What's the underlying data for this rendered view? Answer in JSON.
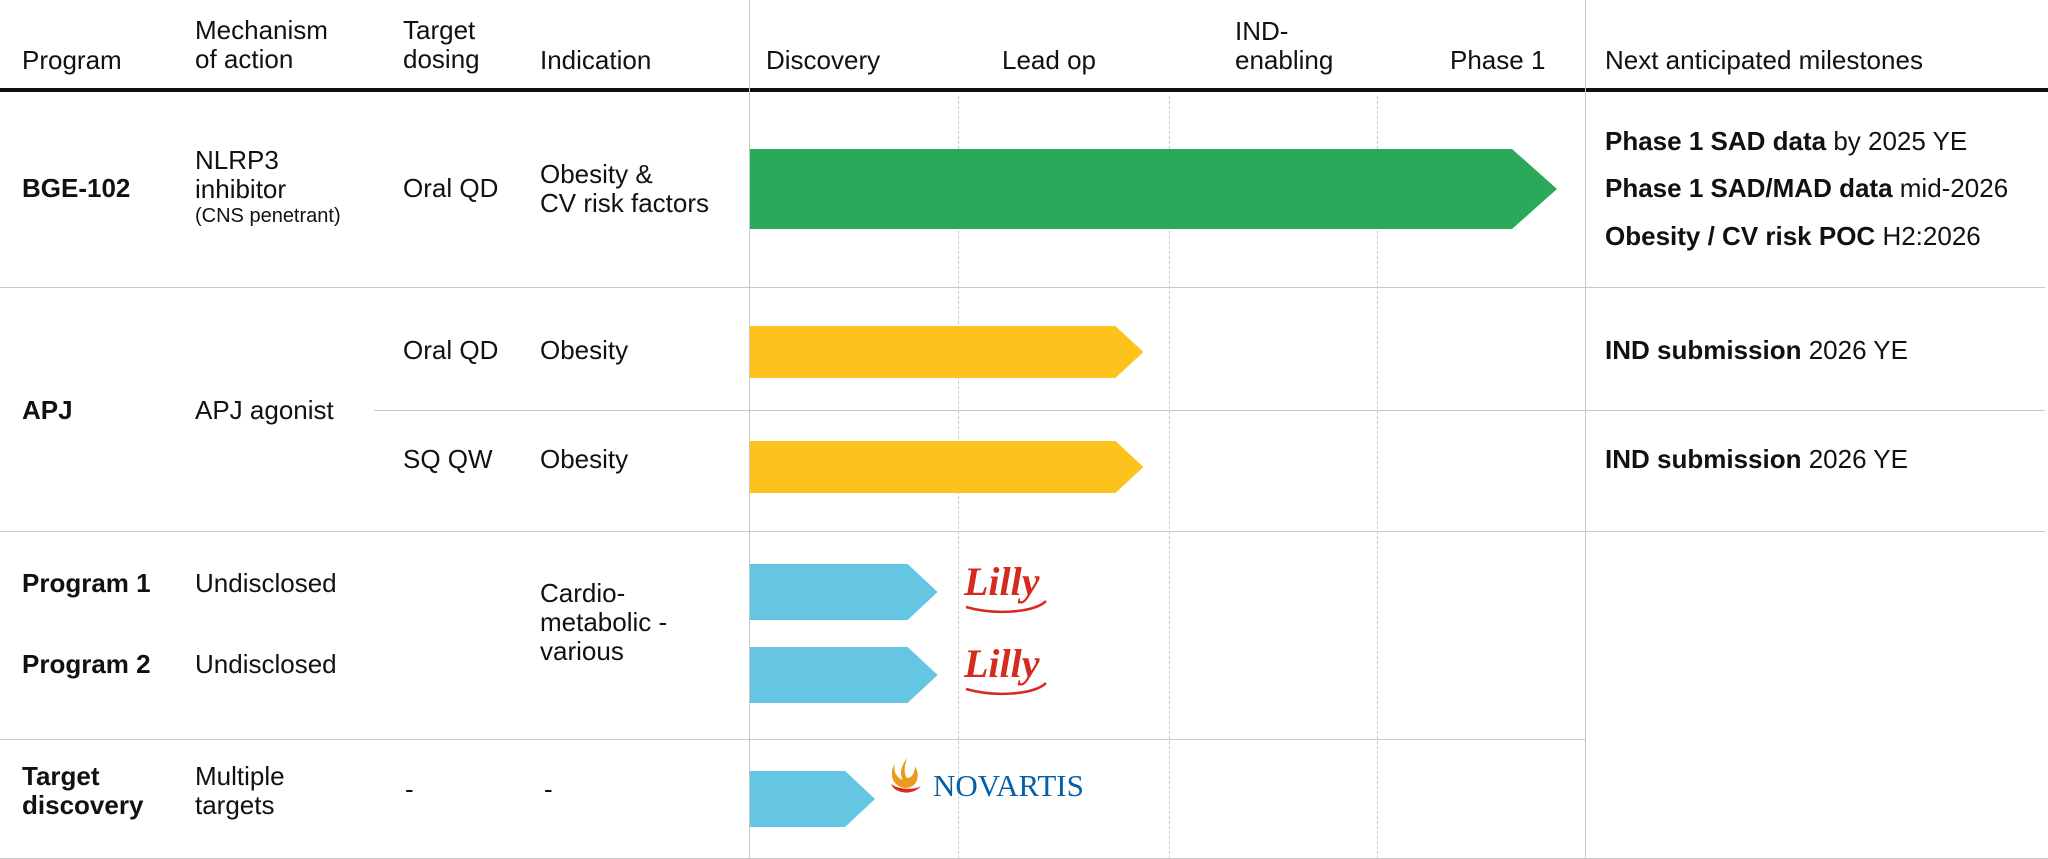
{
  "headers": {
    "program": "Program",
    "mechanism": [
      "Mechanism",
      "of action"
    ],
    "dosing": [
      "Target",
      "dosing"
    ],
    "indication": "Indication",
    "discovery": "Discovery",
    "lead_op": "Lead op",
    "ind_enabling": [
      "IND-",
      "enabling"
    ],
    "phase1": "Phase 1",
    "milestones": "Next anticipated milestones"
  },
  "rows": {
    "bge": {
      "program": "BGE-102",
      "mechanism": [
        "NLRP3",
        "inhibitor"
      ],
      "mechanism_note": "(CNS penetrant)",
      "dosing": "Oral QD",
      "indication": [
        "Obesity &",
        "CV risk factors"
      ],
      "milestones": [
        {
          "bold": "Phase 1 SAD data",
          "rest": " by 2025 YE"
        },
        {
          "bold": "Phase 1 SAD/MAD data",
          "rest": " mid-2026"
        },
        {
          "bold": "Obesity / CV risk POC",
          "rest": " H2:2026"
        }
      ]
    },
    "apj": {
      "program": "APJ",
      "mechanism": "APJ agonist",
      "sub": [
        {
          "dosing": "Oral QD",
          "indication": "Obesity",
          "milestone_bold": "IND submission",
          "milestone_rest": " 2026 YE"
        },
        {
          "dosing": "SQ QW",
          "indication": "Obesity",
          "milestone_bold": "IND submission",
          "milestone_rest": " 2026 YE"
        }
      ]
    },
    "programs": {
      "p1": {
        "program": "Program 1",
        "mechanism": "Undisclosed"
      },
      "p2": {
        "program": "Program 2",
        "mechanism": "Undisclosed"
      },
      "indication": [
        "Cardio-",
        "metabolic -",
        "various"
      ],
      "partner": "Lilly"
    },
    "target": {
      "program": [
        "Target",
        "discovery"
      ],
      "mechanism": [
        "Multiple",
        "targets"
      ],
      "dosing": "-",
      "indication": "-",
      "partner": "NOVARTIS"
    }
  },
  "chart_data": {
    "type": "bar",
    "title": "",
    "stages": [
      "Discovery",
      "Lead op",
      "IND-enabling",
      "Phase 1"
    ],
    "xlim": [
      0,
      4
    ],
    "series": [
      {
        "name": "BGE-102 Oral QD",
        "start": 0,
        "end": 4.0,
        "color": "#2aa95b"
      },
      {
        "name": "APJ Oral QD",
        "start": 0,
        "end": 1.95,
        "color": "#fbc31b"
      },
      {
        "name": "APJ SQ QW",
        "start": 0,
        "end": 1.95,
        "color": "#fbc31b"
      },
      {
        "name": "Program 1",
        "start": 0,
        "end": 0.93,
        "color": "#65c6e4"
      },
      {
        "name": "Program 2",
        "start": 0,
        "end": 0.93,
        "color": "#65c6e4"
      },
      {
        "name": "Target discovery",
        "start": 0,
        "end": 0.62,
        "color": "#65c6e4"
      }
    ]
  },
  "colors": {
    "lilly_red": "#d52b1e",
    "novartis_blue": "#0460a9",
    "novartis_flame": "#ec9a1e"
  }
}
